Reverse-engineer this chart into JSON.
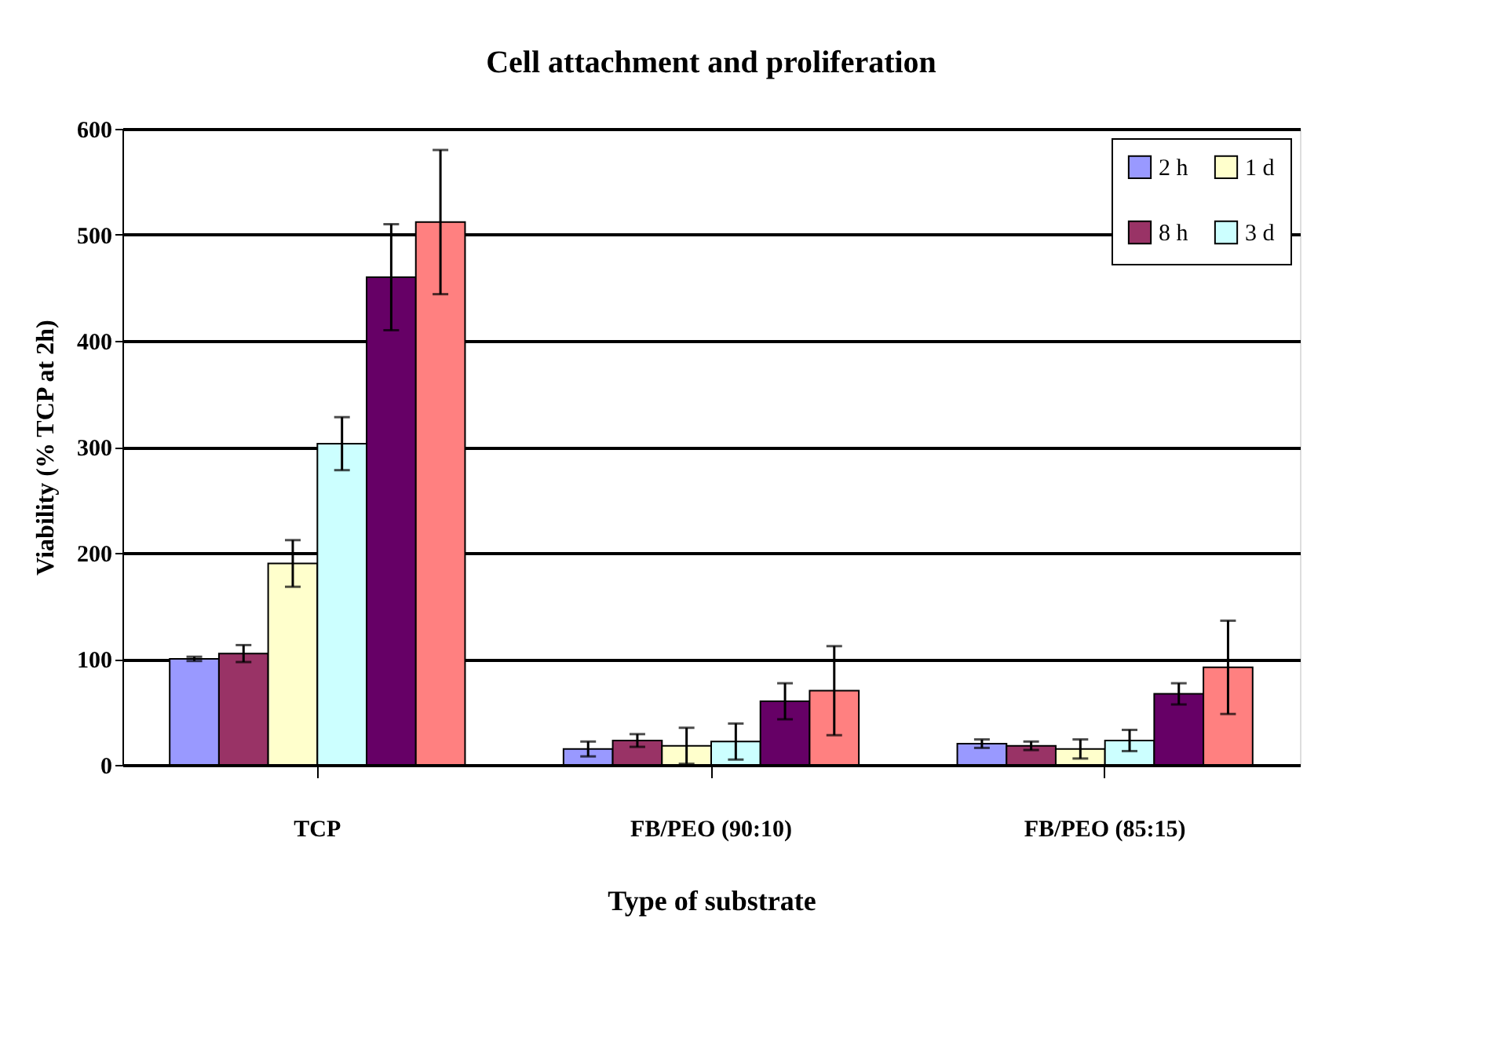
{
  "chart_data": {
    "type": "bar",
    "title": "Cell attachment and proliferation",
    "xlabel": "Type of substrate",
    "ylabel": "Viability (% TCP at 2h)",
    "categories": [
      "TCP",
      "FB/PEO (90:10)",
      "FB/PEO (85:15)"
    ],
    "ylim": [
      0,
      600
    ],
    "yticks": [
      0,
      100,
      200,
      300,
      400,
      500,
      600
    ],
    "grid": "y",
    "legend": "top right",
    "series": [
      {
        "name": "2 h",
        "color": "#9999ff",
        "values": [
          100,
          15,
          20
        ],
        "errors": [
          2,
          7,
          4
        ]
      },
      {
        "name": "8 h",
        "color": "#993366",
        "values": [
          105,
          23,
          18
        ],
        "errors": [
          8,
          6,
          4
        ]
      },
      {
        "name": "1 d",
        "color": "#ffffcc",
        "values": [
          190,
          18,
          15
        ],
        "errors": [
          22,
          17,
          9
        ]
      },
      {
        "name": "3 d",
        "color": "#ccffff",
        "values": [
          303,
          22,
          23
        ],
        "errors": [
          25,
          17,
          10
        ]
      },
      {
        "color": "#660066",
        "values": [
          460,
          60,
          67
        ],
        "errors": [
          50,
          17,
          10
        ]
      },
      {
        "color": "#ff8080",
        "values": [
          512,
          70,
          92
        ],
        "errors": [
          68,
          42,
          44
        ]
      }
    ]
  }
}
